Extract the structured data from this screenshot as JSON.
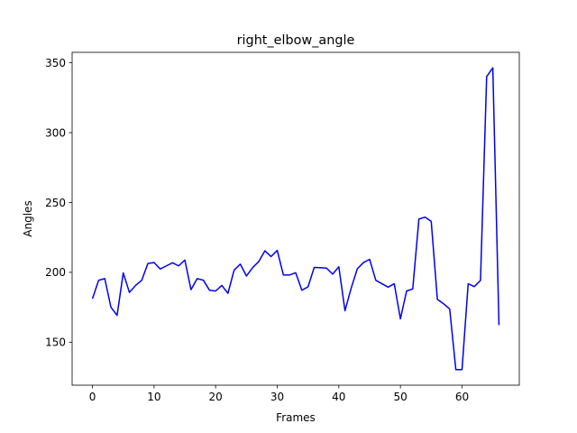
{
  "chart_data": {
    "type": "line",
    "title": "right_elbow_angle",
    "xlabel": "Frames",
    "ylabel": "Angles",
    "xlim": [
      -3.3,
      69.3
    ],
    "ylim": [
      119.2,
      357.5
    ],
    "xticks": [
      0,
      10,
      20,
      30,
      40,
      50,
      60
    ],
    "yticks": [
      150,
      200,
      250,
      300,
      350
    ],
    "grid": false,
    "line_color": "#0000ee",
    "series": [
      {
        "x": [
          0,
          1,
          2,
          3,
          4,
          5,
          6,
          7,
          8,
          9,
          10,
          11,
          12,
          13,
          14,
          15,
          16,
          17,
          18,
          19,
          20,
          21,
          22,
          23,
          24,
          25,
          26,
          27,
          28,
          29,
          30,
          31,
          32,
          33,
          34,
          35,
          36,
          37,
          38,
          39,
          40,
          41,
          42,
          43,
          44,
          45,
          46,
          47,
          48,
          49,
          50,
          51,
          52,
          53,
          54,
          55,
          56,
          57,
          58,
          59,
          60,
          61,
          62,
          63,
          64,
          65,
          66
        ],
        "values": [
          181.1,
          194.3,
          195.5,
          175.0,
          169.2,
          199.6,
          185.6,
          190.6,
          194.3,
          206.3,
          207.0,
          202.4,
          204.6,
          206.8,
          204.6,
          208.8,
          187.6,
          195.5,
          194.4,
          187.2,
          186.6,
          190.6,
          185.0,
          201.6,
          205.9,
          197.4,
          203.3,
          207.7,
          215.4,
          211.3,
          215.7,
          198.1,
          198.1,
          199.7,
          187.2,
          189.6,
          203.5,
          203.3,
          203.0,
          198.7,
          204.0,
          172.5,
          188.6,
          202.5,
          207.0,
          209.3,
          194.3,
          191.8,
          189.4,
          191.8,
          166.7,
          186.6,
          188.1,
          238.1,
          239.5,
          236.5,
          180.6,
          177.5,
          173.7,
          130.3,
          130.3,
          191.8,
          189.8,
          194.2,
          340.1,
          346.4,
          162.2
        ]
      }
    ]
  }
}
